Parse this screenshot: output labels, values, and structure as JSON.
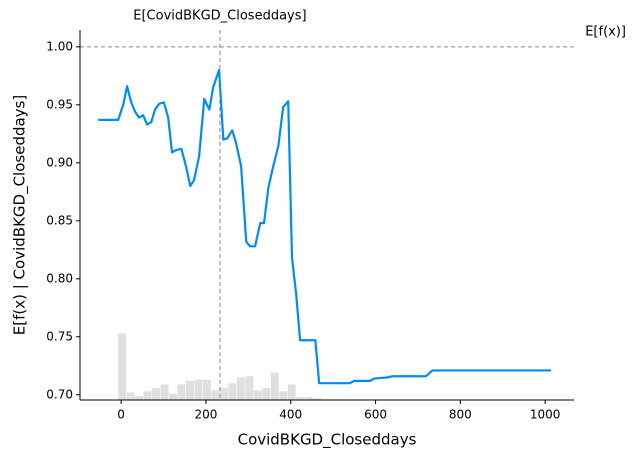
{
  "chart_data": {
    "type": "line",
    "x_label": "CovidBKGD_Closeddays",
    "y_label": "E[f(x) | CovidBKGD_Closeddays]",
    "xlim": [
      -97,
      1068
    ],
    "ylim": [
      0.6955,
      1.0145
    ],
    "xticks": [
      0,
      200,
      400,
      600,
      800,
      1000
    ],
    "yticks": [
      {
        "value": 0.7,
        "label": "0.70"
      },
      {
        "value": 0.75,
        "label": "0.75"
      },
      {
        "value": 0.8,
        "label": "0.80"
      },
      {
        "value": 0.85,
        "label": "0.85"
      },
      {
        "value": 0.9,
        "label": "0.90"
      },
      {
        "value": 0.95,
        "label": "0.95"
      },
      {
        "value": 1.0,
        "label": "1.00"
      }
    ],
    "series": [
      {
        "name": "E[f(x) | CovidBKGD_Closeddays]",
        "color": "#008bfb",
        "x": [
          -54,
          -7,
          5,
          14,
          24,
          33,
          42,
          52,
          61,
          71,
          80,
          90,
          101,
          111,
          120,
          130,
          142,
          153,
          163,
          172,
          184,
          196,
          208,
          217,
          231,
          241,
          250,
          262,
          271,
          283,
          295,
          304,
          316,
          328,
          337,
          347,
          358,
          371,
          382,
          394,
          403,
          413,
          422,
          458,
          467,
          540,
          550,
          587,
          597,
          630,
          639,
          719,
          734,
          1014
        ],
        "values": [
          0.937,
          0.937,
          0.95,
          0.966,
          0.952,
          0.944,
          0.939,
          0.941,
          0.933,
          0.935,
          0.946,
          0.951,
          0.952,
          0.939,
          0.909,
          0.911,
          0.912,
          0.897,
          0.88,
          0.885,
          0.906,
          0.955,
          0.946,
          0.965,
          0.98,
          0.92,
          0.921,
          0.928,
          0.917,
          0.897,
          0.832,
          0.828,
          0.828,
          0.848,
          0.848,
          0.878,
          0.896,
          0.915,
          0.948,
          0.953,
          0.818,
          0.786,
          0.747,
          0.747,
          0.71,
          0.71,
          0.712,
          0.712,
          0.714,
          0.715,
          0.716,
          0.716,
          0.721,
          0.721
        ]
      }
    ],
    "histogram": {
      "color": "#e0e0e0",
      "bins": [
        -7,
        13,
        33,
        53,
        73,
        93,
        113,
        133,
        153,
        173,
        193,
        213,
        233,
        253,
        273,
        293,
        313,
        333,
        353,
        373,
        393,
        413,
        433,
        453,
        473
      ],
      "values": [
        0.753,
        0.702,
        0.699,
        0.703,
        0.706,
        0.709,
        0.701,
        0.709,
        0.712,
        0.713,
        0.713,
        0.704,
        0.706,
        0.71,
        0.715,
        0.716,
        0.704,
        0.706,
        0.719,
        0.703,
        0.709,
        0.698,
        0.698,
        0.697
      ]
    },
    "annotations": [
      {
        "text": "E[CovidBKGD_Closeddays]",
        "axis": "x",
        "value": 233
      },
      {
        "text": "E[f(x)]",
        "axis": "y",
        "value": 1.0
      }
    ]
  }
}
